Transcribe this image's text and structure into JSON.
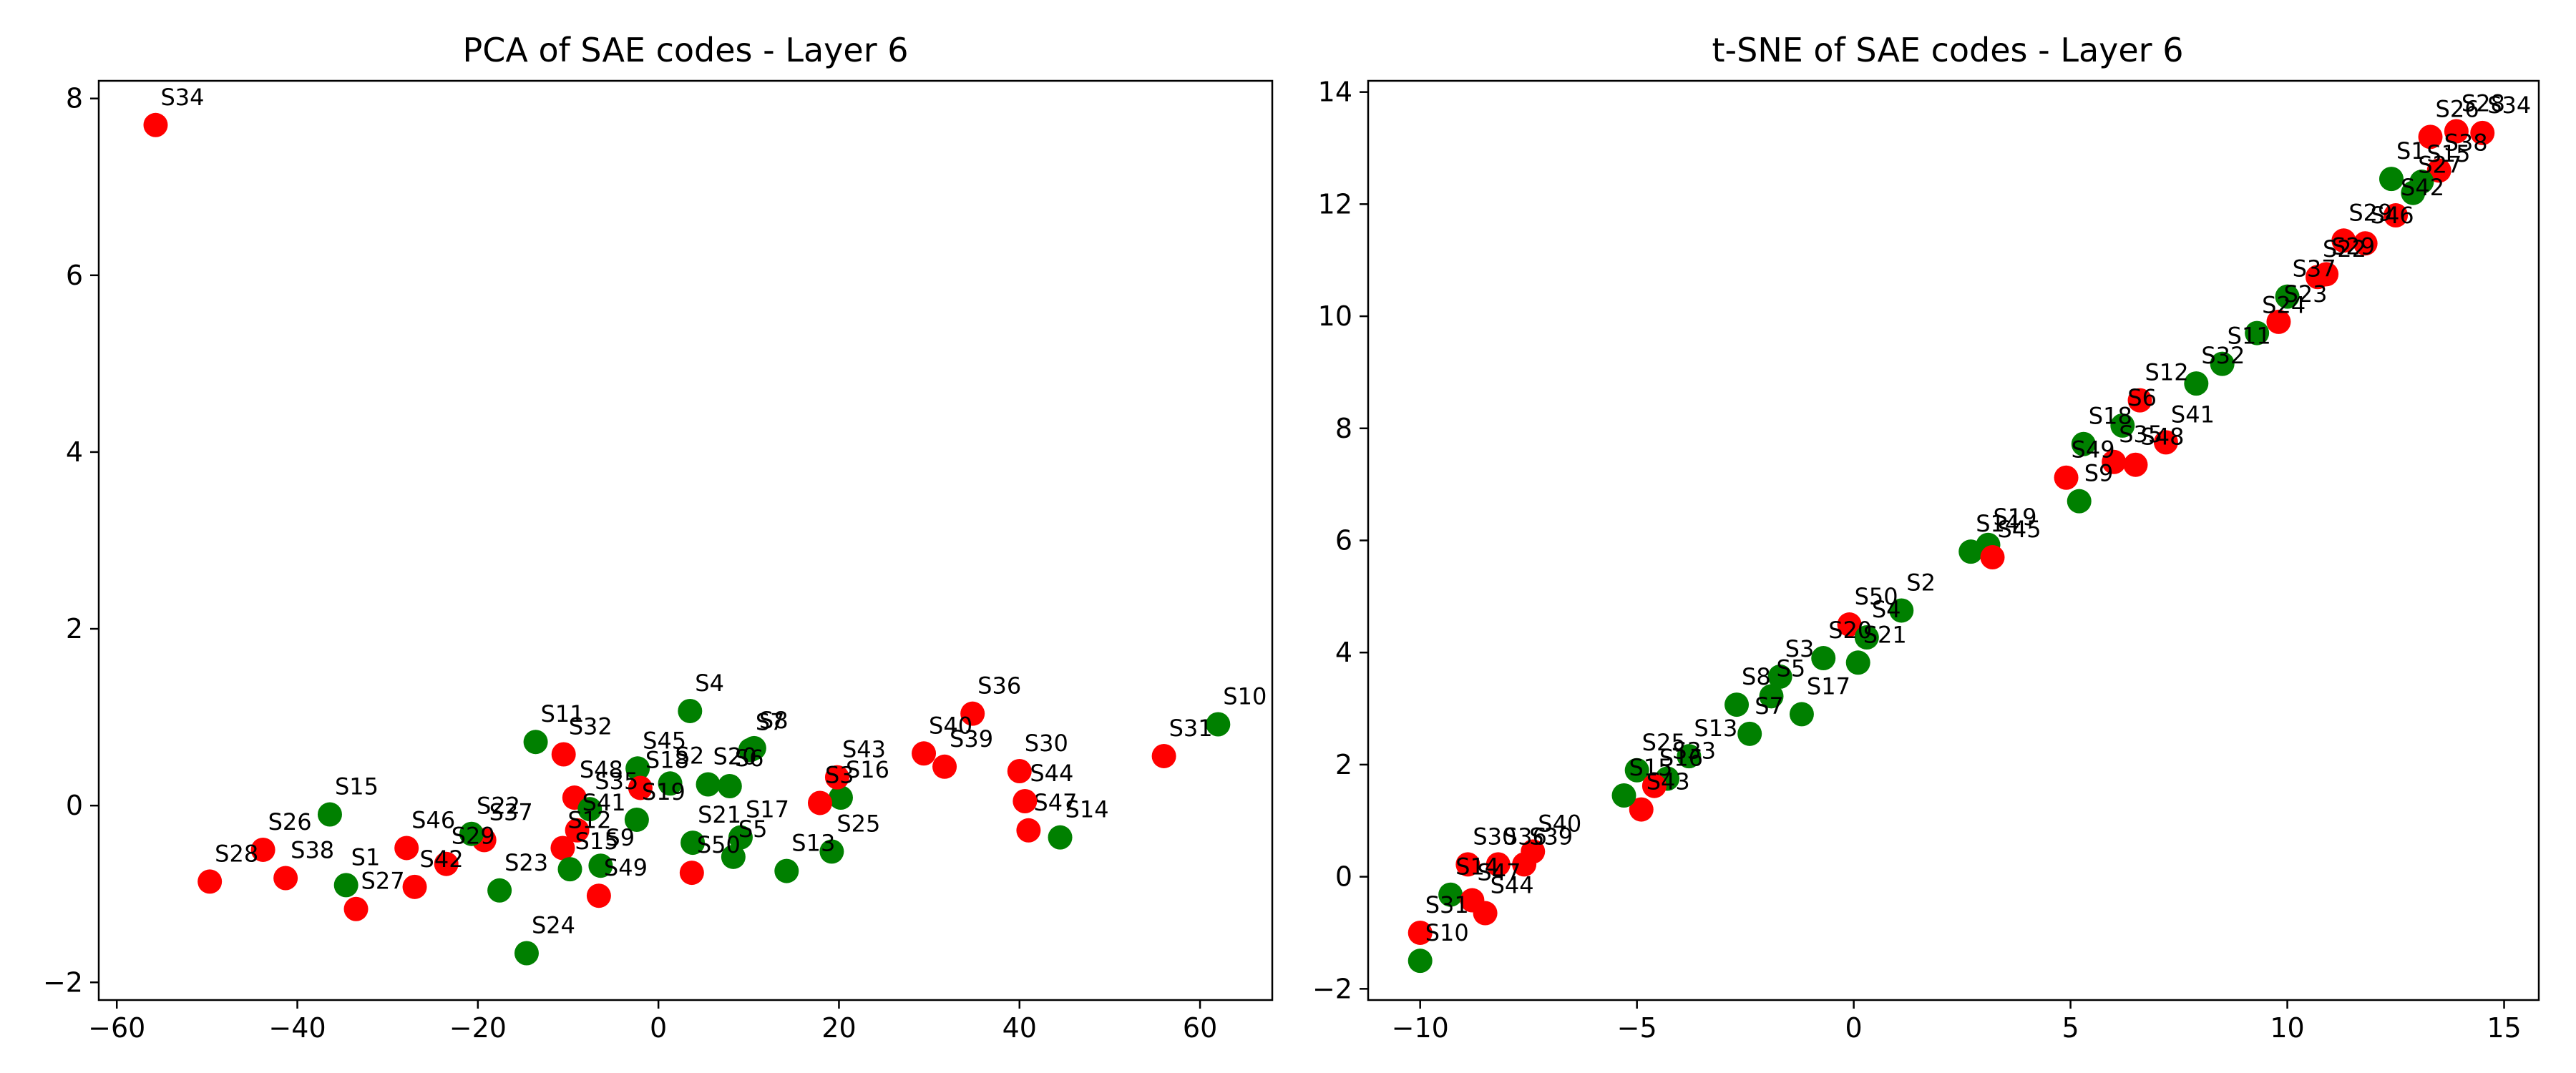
{
  "chart_data": [
    {
      "type": "scatter",
      "title": "PCA of SAE codes - Layer 6",
      "xlabel": "",
      "ylabel": "",
      "xlim": [
        -62,
        68
      ],
      "ylim": [
        -2.2,
        8.2
      ],
      "xticks": [
        -60,
        -40,
        -20,
        0,
        20,
        40,
        60
      ],
      "yticks": [
        -2,
        0,
        2,
        4,
        6,
        8
      ],
      "colors": {
        "red": "#ff0000",
        "green": "#008000"
      },
      "points": [
        {
          "label": "S34",
          "x": -55.7,
          "y": 7.7,
          "color": "red"
        },
        {
          "label": "S10",
          "x": 62.0,
          "y": 0.92,
          "color": "green"
        },
        {
          "label": "S31",
          "x": 56.0,
          "y": 0.56,
          "color": "red"
        },
        {
          "label": "S14",
          "x": 44.5,
          "y": -0.36,
          "color": "green"
        },
        {
          "label": "S47",
          "x": 41.0,
          "y": -0.28,
          "color": "red"
        },
        {
          "label": "S44",
          "x": 40.6,
          "y": 0.05,
          "color": "red"
        },
        {
          "label": "S30",
          "x": 40.0,
          "y": 0.39,
          "color": "red"
        },
        {
          "label": "S36",
          "x": 34.8,
          "y": 1.04,
          "color": "red"
        },
        {
          "label": "S39",
          "x": 31.7,
          "y": 0.44,
          "color": "red"
        },
        {
          "label": "S40",
          "x": 29.4,
          "y": 0.59,
          "color": "red"
        },
        {
          "label": "S16",
          "x": 20.2,
          "y": 0.09,
          "color": "green"
        },
        {
          "label": "S43",
          "x": 19.8,
          "y": 0.32,
          "color": "red"
        },
        {
          "label": "S3",
          "x": 17.9,
          "y": 0.03,
          "color": "red"
        },
        {
          "label": "S25",
          "x": 19.2,
          "y": -0.52,
          "color": "green"
        },
        {
          "label": "S13",
          "x": 14.2,
          "y": -0.74,
          "color": "green"
        },
        {
          "label": "S8",
          "x": 10.6,
          "y": 0.65,
          "color": "green"
        },
        {
          "label": "S7",
          "x": 10.2,
          "y": 0.63,
          "color": "green"
        },
        {
          "label": "S6",
          "x": 7.9,
          "y": 0.22,
          "color": "green"
        },
        {
          "label": "S20",
          "x": 5.5,
          "y": 0.24,
          "color": "green"
        },
        {
          "label": "S17",
          "x": 9.1,
          "y": -0.36,
          "color": "green"
        },
        {
          "label": "S5",
          "x": 8.3,
          "y": -0.58,
          "color": "green"
        },
        {
          "label": "S21",
          "x": 3.8,
          "y": -0.42,
          "color": "green"
        },
        {
          "label": "S50",
          "x": 3.7,
          "y": -0.76,
          "color": "red"
        },
        {
          "label": "S4",
          "x": 3.5,
          "y": 1.07,
          "color": "green"
        },
        {
          "label": "S2",
          "x": 1.3,
          "y": 0.25,
          "color": "green"
        },
        {
          "label": "S45",
          "x": -2.3,
          "y": 0.42,
          "color": "green"
        },
        {
          "label": "S18",
          "x": -2.0,
          "y": 0.2,
          "color": "red"
        },
        {
          "label": "S19",
          "x": -2.4,
          "y": -0.16,
          "color": "green"
        },
        {
          "label": "S32",
          "x": -10.5,
          "y": 0.58,
          "color": "red"
        },
        {
          "label": "S11",
          "x": -13.6,
          "y": 0.72,
          "color": "green"
        },
        {
          "label": "S48",
          "x": -9.3,
          "y": 0.09,
          "color": "red"
        },
        {
          "label": "S35",
          "x": -7.6,
          "y": -0.04,
          "color": "green"
        },
        {
          "label": "S41",
          "x": -9.0,
          "y": -0.28,
          "color": "red"
        },
        {
          "label": "S12",
          "x": -10.6,
          "y": -0.48,
          "color": "red"
        },
        {
          "label": "S9",
          "x": -6.4,
          "y": -0.68,
          "color": "green"
        },
        {
          "label": "S15b",
          "x": -9.8,
          "y": -0.72,
          "color": "green"
        },
        {
          "label": "S49",
          "x": -6.6,
          "y": -1.02,
          "color": "red"
        },
        {
          "label": "S37",
          "x": -19.3,
          "y": -0.39,
          "color": "red"
        },
        {
          "label": "S22",
          "x": -20.7,
          "y": -0.32,
          "color": "green"
        },
        {
          "label": "S23",
          "x": -17.6,
          "y": -0.96,
          "color": "green"
        },
        {
          "label": "S24",
          "x": -14.6,
          "y": -1.67,
          "color": "green"
        },
        {
          "label": "S29",
          "x": -23.5,
          "y": -0.66,
          "color": "red"
        },
        {
          "label": "S46",
          "x": -27.9,
          "y": -0.48,
          "color": "red"
        },
        {
          "label": "S42",
          "x": -27.0,
          "y": -0.92,
          "color": "red"
        },
        {
          "label": "S1",
          "x": -34.6,
          "y": -0.9,
          "color": "green"
        },
        {
          "label": "S27",
          "x": -33.5,
          "y": -1.17,
          "color": "red"
        },
        {
          "label": "S15",
          "x": -36.4,
          "y": -0.1,
          "color": "green"
        },
        {
          "label": "S26",
          "x": -43.8,
          "y": -0.5,
          "color": "red"
        },
        {
          "label": "S38",
          "x": -41.3,
          "y": -0.82,
          "color": "red"
        },
        {
          "label": "S28",
          "x": -49.7,
          "y": -0.86,
          "color": "red"
        }
      ]
    },
    {
      "type": "scatter",
      "title": "t-SNE of SAE codes - Layer 6",
      "xlabel": "",
      "ylabel": "",
      "xlim": [
        -11.2,
        15.8
      ],
      "ylim": [
        -2.2,
        14.2
      ],
      "xticks": [
        -10,
        -5,
        0,
        5,
        10,
        15
      ],
      "yticks": [
        -2,
        0,
        2,
        4,
        6,
        8,
        10,
        12,
        14
      ],
      "colors": {
        "red": "#ff0000",
        "green": "#008000"
      },
      "points": [
        {
          "label": "S34",
          "x": 14.5,
          "y": 13.27,
          "color": "red"
        },
        {
          "label": "S28",
          "x": 13.9,
          "y": 13.3,
          "color": "red"
        },
        {
          "label": "S26",
          "x": 13.3,
          "y": 13.2,
          "color": "red"
        },
        {
          "label": "S38",
          "x": 13.5,
          "y": 12.6,
          "color": "red"
        },
        {
          "label": "S15",
          "x": 13.1,
          "y": 12.4,
          "color": "green"
        },
        {
          "label": "S1",
          "x": 12.4,
          "y": 12.45,
          "color": "green"
        },
        {
          "label": "S27",
          "x": 12.9,
          "y": 12.2,
          "color": "green"
        },
        {
          "label": "S42",
          "x": 12.5,
          "y": 11.8,
          "color": "red"
        },
        {
          "label": "S46",
          "x": 11.8,
          "y": 11.3,
          "color": "red"
        },
        {
          "label": "S29b",
          "x": 11.3,
          "y": 11.35,
          "color": "red"
        },
        {
          "label": "S29",
          "x": 10.9,
          "y": 10.75,
          "color": "red"
        },
        {
          "label": "S22",
          "x": 10.7,
          "y": 10.7,
          "color": "red"
        },
        {
          "label": "S37",
          "x": 10.0,
          "y": 10.35,
          "color": "green"
        },
        {
          "label": "S23",
          "x": 9.8,
          "y": 9.9,
          "color": "red"
        },
        {
          "label": "S24",
          "x": 9.3,
          "y": 9.7,
          "color": "green"
        },
        {
          "label": "S11",
          "x": 8.5,
          "y": 9.15,
          "color": "green"
        },
        {
          "label": "S32",
          "x": 7.9,
          "y": 8.8,
          "color": "green"
        },
        {
          "label": "S12",
          "x": 6.6,
          "y": 8.5,
          "color": "red"
        },
        {
          "label": "S6",
          "x": 6.2,
          "y": 8.05,
          "color": "green"
        },
        {
          "label": "S41",
          "x": 7.2,
          "y": 7.75,
          "color": "red"
        },
        {
          "label": "S35",
          "x": 6.0,
          "y": 7.4,
          "color": "red"
        },
        {
          "label": "S48",
          "x": 6.5,
          "y": 7.35,
          "color": "red"
        },
        {
          "label": "S18",
          "x": 5.3,
          "y": 7.72,
          "color": "green"
        },
        {
          "label": "S49",
          "x": 4.9,
          "y": 7.12,
          "color": "red"
        },
        {
          "label": "S9",
          "x": 5.2,
          "y": 6.7,
          "color": "green"
        },
        {
          "label": "S19",
          "x": 3.1,
          "y": 5.92,
          "color": "green"
        },
        {
          "label": "S14",
          "x": 2.7,
          "y": 5.8,
          "color": "green"
        },
        {
          "label": "S45",
          "x": 3.2,
          "y": 5.7,
          "color": "red"
        },
        {
          "label": "S2",
          "x": 1.1,
          "y": 4.75,
          "color": "green"
        },
        {
          "label": "S50",
          "x": -0.1,
          "y": 4.5,
          "color": "red"
        },
        {
          "label": "S4",
          "x": 0.3,
          "y": 4.27,
          "color": "green"
        },
        {
          "label": "S21",
          "x": 0.1,
          "y": 3.82,
          "color": "green"
        },
        {
          "label": "S20",
          "x": -0.7,
          "y": 3.9,
          "color": "green"
        },
        {
          "label": "S3",
          "x": -1.7,
          "y": 3.57,
          "color": "green"
        },
        {
          "label": "S5",
          "x": -1.9,
          "y": 3.22,
          "color": "green"
        },
        {
          "label": "S17",
          "x": -1.2,
          "y": 2.9,
          "color": "green"
        },
        {
          "label": "S8",
          "x": -2.7,
          "y": 3.07,
          "color": "green"
        },
        {
          "label": "S7",
          "x": -2.4,
          "y": 2.55,
          "color": "green"
        },
        {
          "label": "S13",
          "x": -3.8,
          "y": 2.15,
          "color": "green"
        },
        {
          "label": "S33",
          "x": -4.3,
          "y": 1.75,
          "color": "green"
        },
        {
          "label": "S25",
          "x": -5.0,
          "y": 1.9,
          "color": "green"
        },
        {
          "label": "S16",
          "x": -4.6,
          "y": 1.62,
          "color": "red"
        },
        {
          "label": "S43",
          "x": -4.9,
          "y": 1.2,
          "color": "red"
        },
        {
          "label": "S15c",
          "x": -5.3,
          "y": 1.45,
          "color": "green"
        },
        {
          "label": "S40",
          "x": -7.4,
          "y": 0.45,
          "color": "red"
        },
        {
          "label": "S39",
          "x": -7.6,
          "y": 0.22,
          "color": "red"
        },
        {
          "label": "S36",
          "x": -8.2,
          "y": 0.22,
          "color": "red"
        },
        {
          "label": "S30",
          "x": -8.9,
          "y": 0.22,
          "color": "red"
        },
        {
          "label": "S14b",
          "x": -9.3,
          "y": -0.32,
          "color": "green"
        },
        {
          "label": "S47",
          "x": -8.8,
          "y": -0.42,
          "color": "red"
        },
        {
          "label": "S44",
          "x": -8.5,
          "y": -0.65,
          "color": "red"
        },
        {
          "label": "S31",
          "x": -10.0,
          "y": -1.0,
          "color": "red"
        },
        {
          "label": "S10",
          "x": -10.0,
          "y": -1.5,
          "color": "green"
        }
      ],
      "label_overrides": {}
    }
  ],
  "display_labels": {
    "pca": {
      "S15b": "S15"
    },
    "tsne": {
      "S29b": "S29",
      "S14b": "S14",
      "S15c": "S15"
    }
  }
}
